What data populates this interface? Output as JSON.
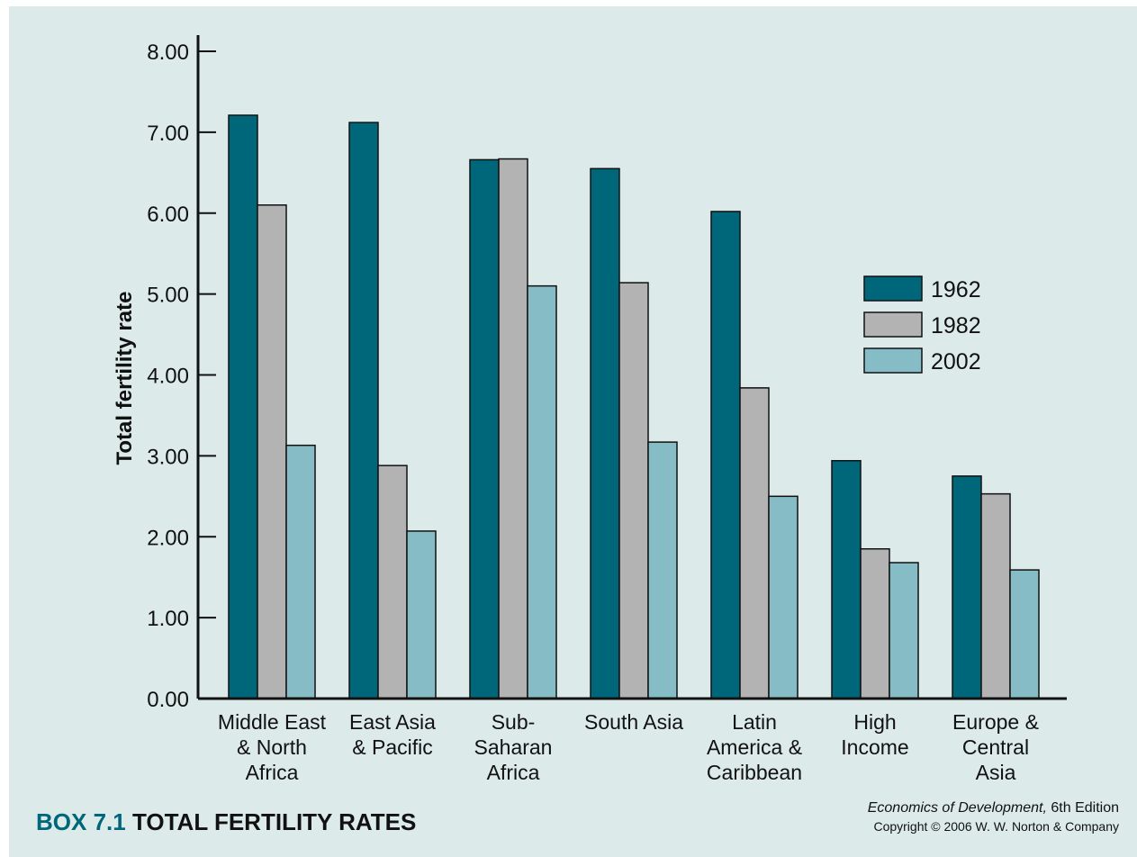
{
  "chart_data": {
    "type": "bar",
    "title_prefix": "BOX 7.1",
    "title": "TOTAL FERTILITY RATES",
    "y_label": "Total fertility rate",
    "source_italic": "Economics of Development,",
    "source_rest": "6th Edition",
    "copyright": "Copyright © 2006 W. W. Norton & Company",
    "categories": [
      "Middle East\n& North\nAfrica",
      "East Asia\n& Pacific",
      "Sub-\nSaharan\nAfrica",
      "South Asia",
      "Latin\nAmerica &\nCaribbean",
      "High\nIncome",
      "Europe &\nCentral\nAsia"
    ],
    "series": [
      {
        "name": "1962",
        "color": "#00667a",
        "values": [
          7.21,
          7.12,
          6.66,
          6.55,
          6.02,
          2.94,
          2.75
        ]
      },
      {
        "name": "1982",
        "color": "#b3b3b3",
        "values": [
          6.1,
          2.88,
          6.67,
          5.14,
          3.84,
          1.85,
          2.53
        ]
      },
      {
        "name": "2002",
        "color": "#86bcc6",
        "values": [
          3.13,
          2.07,
          5.1,
          3.17,
          2.5,
          1.68,
          1.59
        ]
      }
    ],
    "ylim": [
      0,
      8
    ],
    "yticks": [
      {
        "value": 0,
        "label": "0.00"
      },
      {
        "value": 1,
        "label": "1.00"
      },
      {
        "value": 2,
        "label": "2.00"
      },
      {
        "value": 3,
        "label": "3.00"
      },
      {
        "value": 4,
        "label": "4.00"
      },
      {
        "value": 5,
        "label": "5.00"
      },
      {
        "value": 6,
        "label": "6.00"
      },
      {
        "value": 7,
        "label": "7.00"
      },
      {
        "value": 8,
        "label": "8.00"
      }
    ],
    "legend": "right"
  }
}
